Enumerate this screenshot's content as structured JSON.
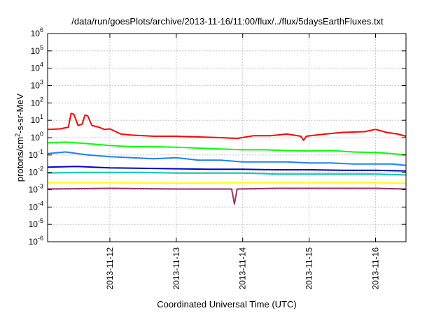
{
  "chart_data": {
    "type": "line",
    "title": "/data/run/goesPlots/archive/2013-11-16/11:00/flux/../flux/5daysEarthFluxes.txt",
    "xlabel": "Coordinated Universal Time (UTC)",
    "ylabel": {
      "main": "protons/cm",
      "sup": "2",
      "rest": "-s-sr-MeV"
    },
    "yscale": "log",
    "ylim": [
      1e-06,
      1000000.0
    ],
    "xlim": [
      "2013-11-11T01:30",
      "2013-11-16T11:00"
    ],
    "grid": true,
    "legend": "none",
    "x_ticks": [
      "2013-11-12",
      "2013-11-13",
      "2013-11-14",
      "2013-11-15",
      "2013-11-16"
    ],
    "y_ticks": [
      {
        "value": 1e-06,
        "base": "10",
        "exp": "-6"
      },
      {
        "value": 1e-05,
        "base": "10",
        "exp": "-5"
      },
      {
        "value": 0.0001,
        "base": "10",
        "exp": "-4"
      },
      {
        "value": 0.001,
        "base": "10",
        "exp": "-3"
      },
      {
        "value": 0.01,
        "base": "10",
        "exp": "-2"
      },
      {
        "value": 0.1,
        "base": "10",
        "exp": "-1"
      },
      {
        "value": 1,
        "base": "10",
        "exp": "0"
      },
      {
        "value": 10.0,
        "base": "10",
        "exp": "1"
      },
      {
        "value": 100.0,
        "base": "10",
        "exp": "2"
      },
      {
        "value": 1000.0,
        "base": "10",
        "exp": "3"
      },
      {
        "value": 10000.0,
        "base": "10",
        "exp": "4"
      },
      {
        "value": 100000.0,
        "base": "10",
        "exp": "5"
      },
      {
        "value": 1000000.0,
        "base": "10",
        "exp": "6"
      }
    ],
    "series": [
      {
        "color": "#ff0000",
        "points": [
          [
            "2013-11-11T01:30",
            3.0
          ],
          [
            "2013-11-11T06:00",
            3.2
          ],
          [
            "2013-11-11T09:00",
            4.0
          ],
          [
            "2013-11-11T10:00",
            25
          ],
          [
            "2013-11-11T11:00",
            22
          ],
          [
            "2013-11-11T12:30",
            5.0
          ],
          [
            "2013-11-11T14:00",
            6.0
          ],
          [
            "2013-11-11T15:00",
            20
          ],
          [
            "2013-11-11T16:00",
            18
          ],
          [
            "2013-11-11T17:30",
            5.0
          ],
          [
            "2013-11-11T20:00",
            4.0
          ],
          [
            "2013-11-11T22:00",
            3.0
          ],
          [
            "2013-11-12T00:00",
            3.2
          ],
          [
            "2013-11-12T04:00",
            1.6
          ],
          [
            "2013-11-12T08:00",
            1.4
          ],
          [
            "2013-11-12T16:00",
            1.2
          ],
          [
            "2013-11-13T00:00",
            1.2
          ],
          [
            "2013-11-13T08:00",
            1.1
          ],
          [
            "2013-11-13T16:00",
            1.0
          ],
          [
            "2013-11-13T22:00",
            0.9
          ],
          [
            "2013-11-14T04:00",
            1.3
          ],
          [
            "2013-11-14T10:00",
            1.3
          ],
          [
            "2013-11-14T16:00",
            1.6
          ],
          [
            "2013-11-14T21:00",
            1.2
          ],
          [
            "2013-11-14T22:00",
            0.7
          ],
          [
            "2013-11-14T23:00",
            1.2
          ],
          [
            "2013-11-15T04:00",
            1.5
          ],
          [
            "2013-11-15T12:00",
            2.0
          ],
          [
            "2013-11-15T20:00",
            2.2
          ],
          [
            "2013-11-16T00:00",
            3.0
          ],
          [
            "2013-11-16T04:00",
            2.0
          ],
          [
            "2013-11-16T08:00",
            1.6
          ],
          [
            "2013-11-16T11:00",
            1.2
          ]
        ]
      },
      {
        "color": "#00ff00",
        "points": [
          [
            "2013-11-11T01:30",
            0.5
          ],
          [
            "2013-11-11T08:00",
            0.55
          ],
          [
            "2013-11-11T16:00",
            0.45
          ],
          [
            "2013-11-12T00:00",
            0.35
          ],
          [
            "2013-11-12T08:00",
            0.3
          ],
          [
            "2013-11-12T16:00",
            0.3
          ],
          [
            "2013-11-13T00:00",
            0.28
          ],
          [
            "2013-11-13T08:00",
            0.25
          ],
          [
            "2013-11-13T16:00",
            0.22
          ],
          [
            "2013-11-14T00:00",
            0.2
          ],
          [
            "2013-11-14T08:00",
            0.2
          ],
          [
            "2013-11-14T16:00",
            0.18
          ],
          [
            "2013-11-15T00:00",
            0.17
          ],
          [
            "2013-11-15T08:00",
            0.18
          ],
          [
            "2013-11-15T16:00",
            0.15
          ],
          [
            "2013-11-16T00:00",
            0.14
          ],
          [
            "2013-11-16T06:00",
            0.12
          ],
          [
            "2013-11-16T11:00",
            0.1
          ]
        ]
      },
      {
        "color": "#1a80ff",
        "points": [
          [
            "2013-11-11T01:30",
            0.12
          ],
          [
            "2013-11-11T08:00",
            0.15
          ],
          [
            "2013-11-11T16:00",
            0.1
          ],
          [
            "2013-11-12T00:00",
            0.08
          ],
          [
            "2013-11-12T08:00",
            0.07
          ],
          [
            "2013-11-12T16:00",
            0.06
          ],
          [
            "2013-11-13T00:00",
            0.07
          ],
          [
            "2013-11-13T08:00",
            0.05
          ],
          [
            "2013-11-13T16:00",
            0.05
          ],
          [
            "2013-11-14T00:00",
            0.04
          ],
          [
            "2013-11-14T08:00",
            0.04
          ],
          [
            "2013-11-14T16:00",
            0.04
          ],
          [
            "2013-11-15T00:00",
            0.035
          ],
          [
            "2013-11-15T08:00",
            0.035
          ],
          [
            "2013-11-15T16:00",
            0.03
          ],
          [
            "2013-11-16T00:00",
            0.03
          ],
          [
            "2013-11-16T06:00",
            0.03
          ],
          [
            "2013-11-16T11:00",
            0.025
          ]
        ]
      },
      {
        "color": "#0000cc",
        "points": [
          [
            "2013-11-11T01:30",
            0.02
          ],
          [
            "2013-11-11T12:00",
            0.022
          ],
          [
            "2013-11-12T00:00",
            0.018
          ],
          [
            "2013-11-12T12:00",
            0.017
          ],
          [
            "2013-11-13T00:00",
            0.016
          ],
          [
            "2013-11-13T12:00",
            0.015
          ],
          [
            "2013-11-14T00:00",
            0.015
          ],
          [
            "2013-11-14T12:00",
            0.014
          ],
          [
            "2013-11-15T00:00",
            0.014
          ],
          [
            "2013-11-15T12:00",
            0.013
          ],
          [
            "2013-11-16T00:00",
            0.013
          ],
          [
            "2013-11-16T11:00",
            0.012
          ]
        ]
      },
      {
        "color": "#00ccaa",
        "points": [
          [
            "2013-11-11T01:30",
            0.009
          ],
          [
            "2013-11-11T12:00",
            0.01
          ],
          [
            "2013-11-12T00:00",
            0.01
          ],
          [
            "2013-11-12T12:00",
            0.01
          ],
          [
            "2013-11-13T00:00",
            0.009
          ],
          [
            "2013-11-13T12:00",
            0.009
          ],
          [
            "2013-11-14T00:00",
            0.009
          ],
          [
            "2013-11-14T12:00",
            0.008
          ],
          [
            "2013-11-15T00:00",
            0.008
          ],
          [
            "2013-11-15T12:00",
            0.008
          ],
          [
            "2013-11-16T00:00",
            0.008
          ],
          [
            "2013-11-16T11:00",
            0.007
          ]
        ]
      },
      {
        "color": "#ffff00",
        "points": [
          [
            "2013-11-11T01:30",
            0.0025
          ],
          [
            "2013-11-12T00:00",
            0.0025
          ],
          [
            "2013-11-13T00:00",
            0.0024
          ],
          [
            "2013-11-14T00:00",
            0.0025
          ],
          [
            "2013-11-15T00:00",
            0.0025
          ],
          [
            "2013-11-16T00:00",
            0.0025
          ],
          [
            "2013-11-16T11:00",
            0.0024
          ]
        ]
      },
      {
        "color": "#993366",
        "points": [
          [
            "2013-11-11T01:30",
            0.0011
          ],
          [
            "2013-11-12T00:00",
            0.0012
          ],
          [
            "2013-11-13T00:00",
            0.0011
          ],
          [
            "2013-11-13T20:00",
            0.0011
          ],
          [
            "2013-11-13T21:00",
            0.00015
          ],
          [
            "2013-11-13T22:00",
            0.0011
          ],
          [
            "2013-11-14T12:00",
            0.0012
          ],
          [
            "2013-11-15T00:00",
            0.0012
          ],
          [
            "2013-11-16T00:00",
            0.0012
          ],
          [
            "2013-11-16T11:00",
            0.0011
          ]
        ]
      }
    ]
  }
}
